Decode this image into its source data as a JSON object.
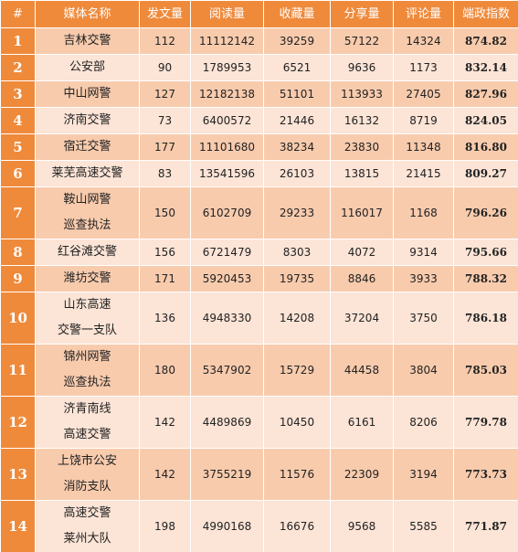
{
  "table": {
    "header": [
      "#",
      "媒体名称",
      "发文量",
      "阅读量",
      "收藏量",
      "分享量",
      "评论量",
      "端政指数"
    ],
    "rows": [
      [
        "1",
        [
          "吉林交警"
        ],
        "112",
        "11112142",
        "39259",
        "57122",
        "14324",
        "874.82"
      ],
      [
        "2",
        [
          "公安部"
        ],
        "90",
        "1789953",
        "6521",
        "9636",
        "1173",
        "832.14"
      ],
      [
        "3",
        [
          "中山网警"
        ],
        "127",
        "12182138",
        "51101",
        "113933",
        "27405",
        "827.96"
      ],
      [
        "4",
        [
          "济南交警"
        ],
        "73",
        "6400572",
        "21446",
        "16132",
        "8719",
        "824.05"
      ],
      [
        "5",
        [
          "宿迁交警"
        ],
        "177",
        "11101680",
        "38234",
        "23830",
        "11348",
        "816.80"
      ],
      [
        "6",
        [
          "莱芜高速交警"
        ],
        "83",
        "13541596",
        "26103",
        "13815",
        "21415",
        "809.27"
      ],
      [
        "7",
        [
          "鞍山网警",
          "巡查执法"
        ],
        "150",
        "6102709",
        "29233",
        "116017",
        "1168",
        "796.26"
      ],
      [
        "8",
        [
          "红谷滩交警"
        ],
        "156",
        "6721479",
        "8303",
        "4072",
        "9314",
        "795.66"
      ],
      [
        "9",
        [
          "潍坊交警"
        ],
        "171",
        "5920453",
        "19735",
        "8846",
        "3933",
        "788.32"
      ],
      [
        "10",
        [
          "山东高速",
          "交警一支队"
        ],
        "136",
        "4948330",
        "14208",
        "37204",
        "3750",
        "786.18"
      ],
      [
        "11",
        [
          "锦州网警",
          "巡查执法"
        ],
        "180",
        "5347902",
        "15729",
        "44458",
        "3804",
        "785.03"
      ],
      [
        "12",
        [
          "济青南线",
          "高速交警"
        ],
        "142",
        "4489869",
        "10450",
        "6161",
        "8206",
        "779.78"
      ],
      [
        "13",
        [
          "上饶市公安",
          "消防支队"
        ],
        "142",
        "3755219",
        "11576",
        "22309",
        "3194",
        "773.73"
      ],
      [
        "14",
        [
          "高速交警",
          "莱州大队"
        ],
        "198",
        "4990168",
        "16676",
        "9568",
        "5585",
        "771.87"
      ]
    ]
  }
}
